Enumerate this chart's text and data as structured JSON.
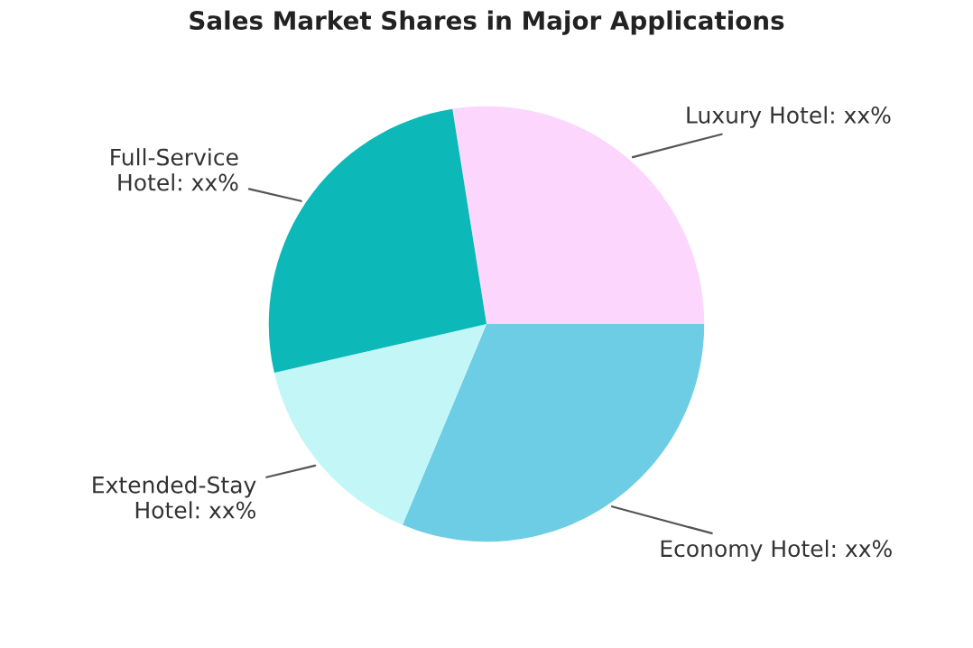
{
  "chart_data": {
    "type": "pie",
    "title": "Sales Market Shares in Major Applications",
    "categories": [
      "Luxury Hotel",
      "Economy Hotel",
      "Extended-Stay\nHotel",
      "Full-Service\nHotel"
    ],
    "values": [
      27.5,
      31.3,
      15.1,
      26.1
    ],
    "value_labels": [
      "xx%",
      "xx%",
      "xx%",
      "xx%"
    ],
    "colors": [
      "#fcd6fc",
      "#6dcde5",
      "#c3f7f7",
      "#0cb8b8"
    ],
    "legend": false
  }
}
